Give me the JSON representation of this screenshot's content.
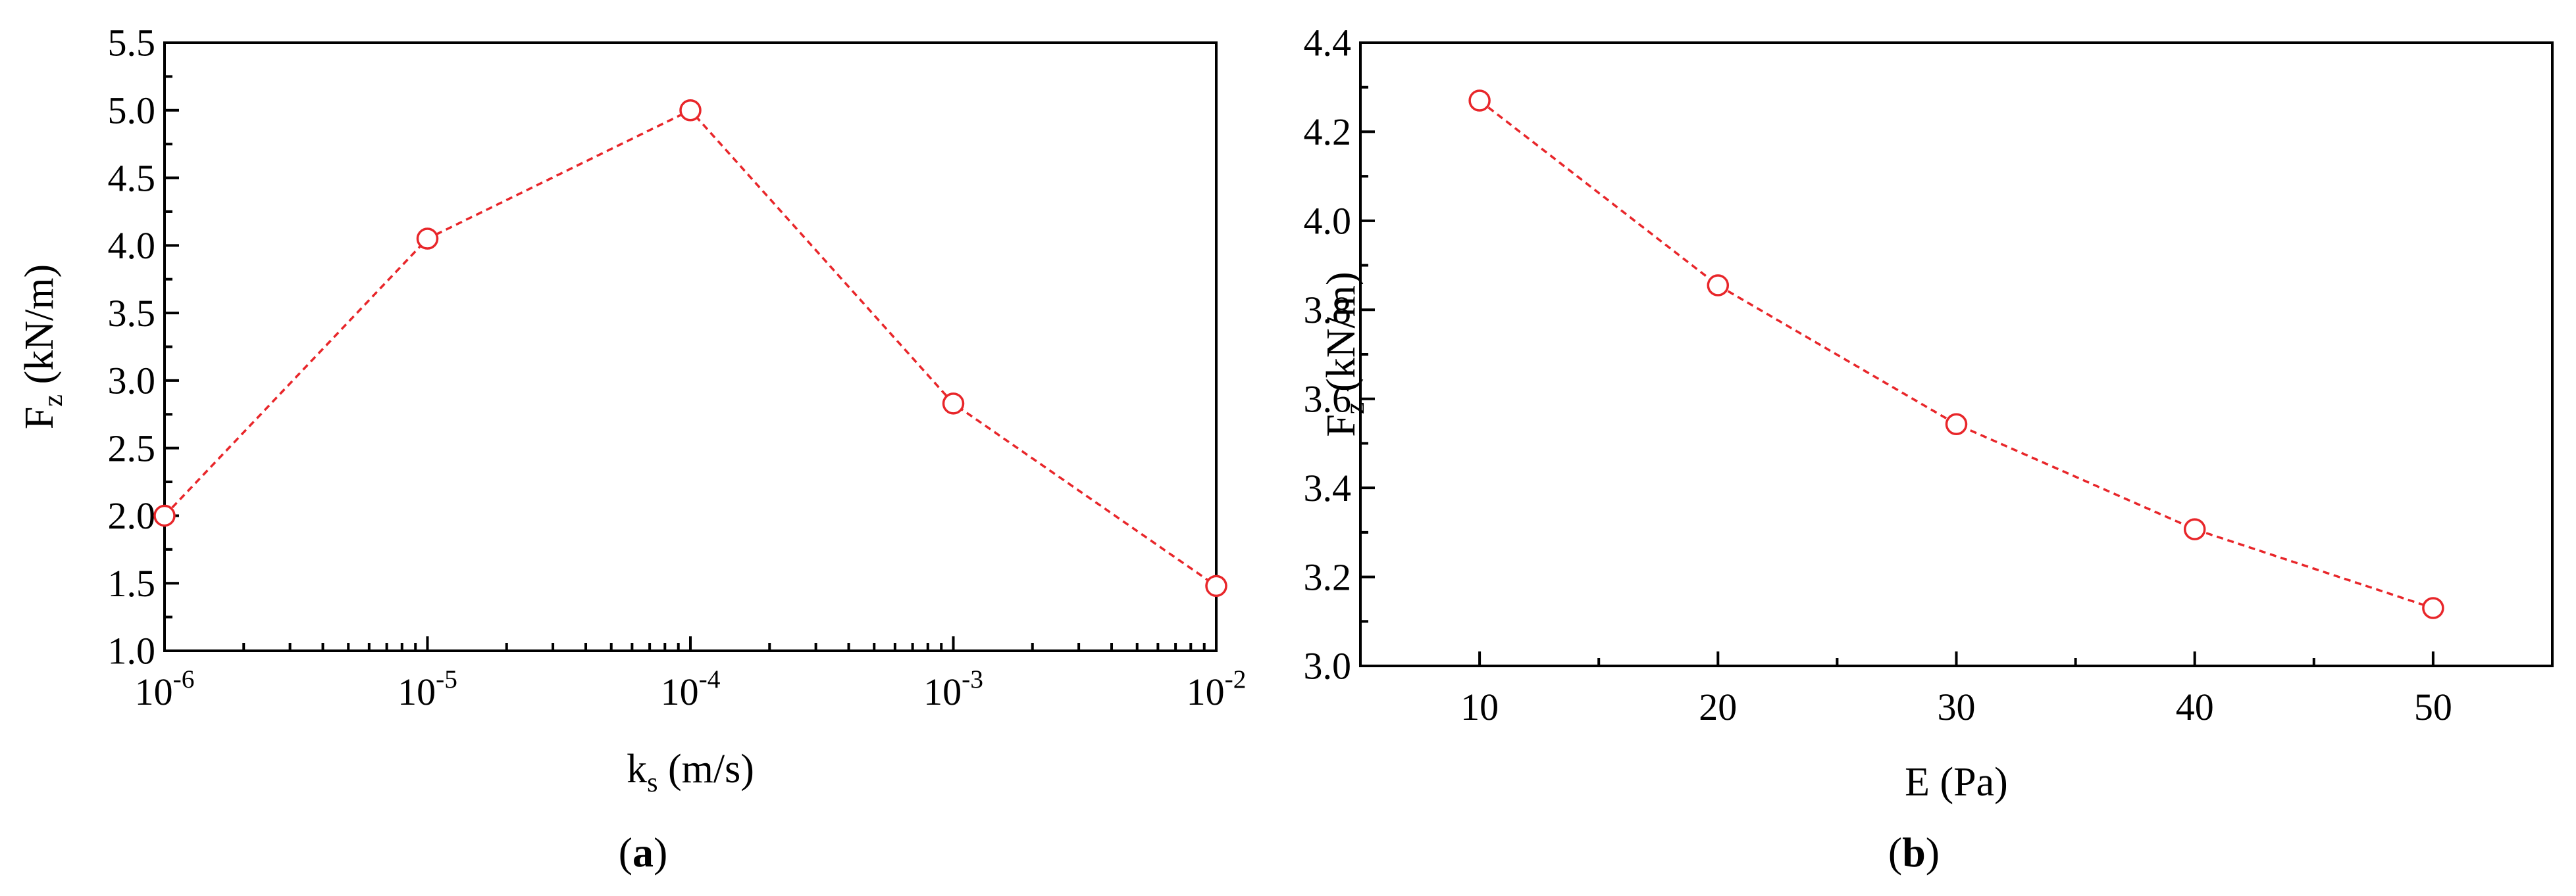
{
  "chart_data": [
    {
      "panel_label": "a",
      "type": "line",
      "x_scale": "log",
      "x": [
        1e-06,
        1e-05,
        0.0001,
        0.001,
        0.01
      ],
      "series": [
        {
          "values": [
            2.0,
            4.05,
            5.0,
            2.83,
            1.48
          ]
        }
      ],
      "xlabel": {
        "main": "k",
        "sub": "s",
        "rest": " (m/s)"
      },
      "ylabel": {
        "main": "F",
        "sub": "z",
        "rest": " (kN/m)"
      },
      "xlim": [
        1e-06,
        0.01
      ],
      "ylim": [
        1.0,
        5.5
      ],
      "x_ticks": [
        {
          "value": 1e-06,
          "base": "10",
          "exp": "-6"
        },
        {
          "value": 1e-05,
          "base": "10",
          "exp": "-5"
        },
        {
          "value": 0.0001,
          "base": "10",
          "exp": "-4"
        },
        {
          "value": 0.001,
          "base": "10",
          "exp": "-3"
        },
        {
          "value": 0.01,
          "base": "10",
          "exp": "-2"
        }
      ],
      "y_ticks": [
        "1.0",
        "1.5",
        "2.0",
        "2.5",
        "3.0",
        "3.5",
        "4.0",
        "4.5",
        "5.0",
        "5.5"
      ],
      "line_style": "dashed",
      "marker": "open-circle",
      "color": "#e8262a",
      "grid": false
    },
    {
      "panel_label": "b",
      "type": "line",
      "x_scale": "linear",
      "x": [
        10,
        20,
        30,
        40,
        50
      ],
      "series": [
        {
          "values": [
            4.27,
            3.855,
            3.543,
            3.307,
            3.13
          ]
        }
      ],
      "xlabel": {
        "main": "E",
        "sub": "",
        "rest": " (Pa)"
      },
      "ylabel": {
        "main": "F",
        "sub": "z",
        "rest": " (kN/m)"
      },
      "xlim": [
        5,
        55
      ],
      "ylim": [
        3.0,
        4.4
      ],
      "x_ticks": [
        "10",
        "20",
        "30",
        "40",
        "50"
      ],
      "y_ticks": [
        "3.0",
        "3.2",
        "3.4",
        "3.6",
        "3.8",
        "4.0",
        "4.2",
        "4.4"
      ],
      "line_style": "dashed",
      "marker": "open-circle",
      "color": "#e8262a",
      "grid": false
    }
  ]
}
